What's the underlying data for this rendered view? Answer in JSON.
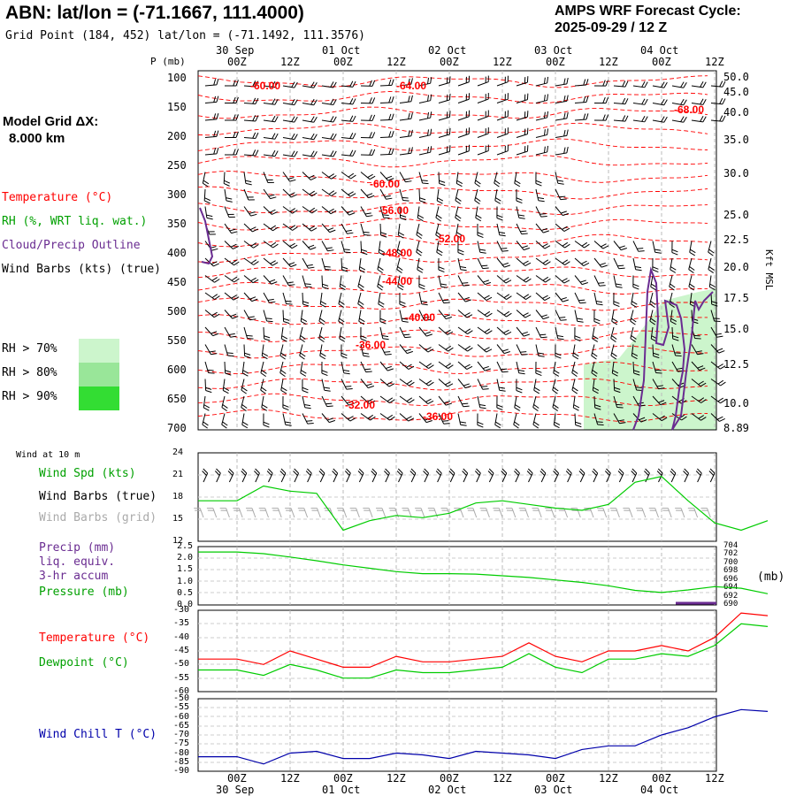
{
  "header": {
    "station_title": "ABN:  lat/lon = (-71.1667, 111.4000)",
    "grid_point": "Grid Point (184, 452) lat/lon = (-71.1492, 111.3576)",
    "forecast_line1": "AMPS WRF Forecast Cycle:",
    "forecast_line2": "2025-09-29 / 12  Z"
  },
  "model_grid": {
    "line1": "Model Grid ΔX:",
    "line2": "8.000 km"
  },
  "legend": {
    "temperature": "Temperature (°C)",
    "rh": "RH (%, WRT liq. wat.)",
    "cloud": "Cloud/Precip Outline",
    "wind": "Wind Barbs (kts) (true)",
    "rh70": "RH > 70%",
    "rh80": "RH > 80%",
    "rh90": "RH > 90%"
  },
  "colors": {
    "temperature": "#ff0000",
    "rh_green": "#00c000",
    "cloud": "#6a2c91",
    "dewpoint": "#00cc00",
    "wind_chill": "#0000aa",
    "rh70": "#ccf5cc",
    "rh80": "#99e699",
    "rh90": "#33dd33",
    "grid": "#bbbbbb"
  },
  "time_axis": {
    "top_dates": [
      "30 Sep",
      "01 Oct",
      "02 Oct",
      "03 Oct",
      "04 Oct"
    ],
    "hour_labels": [
      "00Z",
      "12Z",
      "00Z",
      "12Z",
      "00Z",
      "12Z",
      "00Z",
      "12Z",
      "00Z",
      "12Z"
    ],
    "bottom_dates": [
      "30 Sep",
      "01 Oct",
      "02 Oct",
      "03 Oct",
      "04 Oct"
    ]
  },
  "sounding": {
    "pressure_label": "P (mb)",
    "right_label": "Kft MSL",
    "pressure_ticks": [
      "100",
      "150",
      "200",
      "250",
      "300",
      "350",
      "400",
      "450",
      "500",
      "550",
      "600",
      "650",
      "700"
    ],
    "height_ticks": [
      "50.0",
      "45.0",
      "40.0",
      "35.0",
      "30.0",
      "25.0",
      "22.5",
      "20.0",
      "17.5",
      "15.0",
      "12.5",
      "10.0",
      "8.89"
    ],
    "temperature_labels": [
      "-60.00",
      "-64.00",
      "-68.00",
      "-60.00",
      "-56.00",
      "-52.00",
      "-48.00",
      "-44.00",
      "-40.00",
      "-36.00",
      "-32.00",
      "-36.00"
    ]
  },
  "wind_panel": {
    "header": "Wind at 10 m",
    "label_speed": "Wind Spd (kts)",
    "label_barbs_true": "Wind Barbs (true)",
    "label_barbs_grid": "Wind Barbs (grid)",
    "y_ticks": [
      "24",
      "21",
      "18",
      "15",
      "12"
    ]
  },
  "precip_panel": {
    "label1": "Precip (mm)",
    "label2": "liq. equiv.",
    "label3": "3-hr accum",
    "label4": "Pressure (mb)",
    "y_left": [
      "2.5",
      "2.0",
      "1.5",
      "1.0",
      "0.5",
      "0.0"
    ],
    "y_right": [
      "704",
      "702",
      "700",
      "698",
      "696",
      "694",
      "692",
      "690"
    ],
    "right_unit": "(mb)"
  },
  "temp_panel": {
    "label_temp": "Temperature (°C)",
    "label_dew": "Dewpoint (°C)",
    "y_ticks": [
      "-30",
      "-35",
      "-40",
      "-45",
      "-50",
      "-55",
      "-60"
    ]
  },
  "chill_panel": {
    "label": "Wind Chill T (°C)",
    "y_ticks": [
      "-50",
      "-55",
      "-60",
      "-65",
      "-70",
      "-75",
      "-80",
      "-85",
      "-90"
    ]
  },
  "chart_data": [
    {
      "type": "line",
      "panel": "wind_10m",
      "x_hours": [
        0,
        6,
        12,
        18,
        24,
        30,
        36,
        42,
        48,
        54,
        60,
        66,
        72,
        78,
        84,
        90,
        96,
        102,
        108,
        114,
        120
      ],
      "ylim": [
        12,
        24
      ],
      "series": [
        {
          "name": "Wind Spd (kts)",
          "values": [
            17.5,
            19.5,
            18.8,
            18.5,
            13.5,
            14.8,
            15.5,
            15.2,
            15.8,
            17.2,
            17.5,
            17.0,
            16.5,
            16.2,
            17.0,
            20.0,
            20.8,
            17.5,
            14.5,
            13.5,
            14.8
          ]
        }
      ]
    },
    {
      "type": "line",
      "panel": "precip_pressure",
      "x_hours": [
        0,
        6,
        12,
        18,
        24,
        30,
        36,
        42,
        48,
        54,
        60,
        66,
        72,
        78,
        84,
        90,
        96,
        102,
        108,
        114,
        120
      ],
      "ylim": [
        690,
        704
      ],
      "series": [
        {
          "name": "Pressure (mb)",
          "values": [
            702.7,
            702.3,
            701.5,
            700.6,
            699.6,
            698.8,
            698.0,
            697.5,
            697.5,
            697.4,
            697.0,
            696.6,
            696.0,
            695.4,
            694.6,
            693.5,
            693.0,
            693.6,
            694.4,
            694.0,
            692.7
          ]
        }
      ]
    },
    {
      "type": "line",
      "panel": "temperature_dewpoint",
      "x_hours": [
        0,
        6,
        12,
        18,
        24,
        30,
        36,
        42,
        48,
        54,
        60,
        66,
        72,
        78,
        84,
        90,
        96,
        102,
        108,
        114,
        120
      ],
      "ylim": [
        -60,
        -30
      ],
      "series": [
        {
          "name": "Temperature (°C)",
          "values": [
            -48,
            -50,
            -45,
            -48,
            -51,
            -51,
            -47,
            -49,
            -49,
            -48,
            -47,
            -42,
            -47,
            -49,
            -45,
            -45,
            -43,
            -45,
            -40,
            -31,
            -32
          ]
        },
        {
          "name": "Dewpoint (°C)",
          "values": [
            -52,
            -54,
            -50,
            -52,
            -55,
            -55,
            -52,
            -53,
            -53,
            -52,
            -51,
            -46,
            -51,
            -53,
            -48,
            -48,
            -46,
            -47,
            -43,
            -35,
            -36
          ]
        }
      ]
    },
    {
      "type": "line",
      "panel": "wind_chill",
      "x_hours": [
        0,
        6,
        12,
        18,
        24,
        30,
        36,
        42,
        48,
        54,
        60,
        66,
        72,
        78,
        84,
        90,
        96,
        102,
        108,
        114,
        120
      ],
      "ylim": [
        -90,
        -50
      ],
      "series": [
        {
          "name": "Wind Chill T (°C)",
          "values": [
            -82,
            -86,
            -80,
            -79,
            -83,
            -83,
            -80,
            -81,
            -83,
            -79,
            -80,
            -81,
            -83,
            -78,
            -76,
            -76,
            -70,
            -66,
            -60,
            -56,
            -57
          ]
        }
      ]
    }
  ]
}
